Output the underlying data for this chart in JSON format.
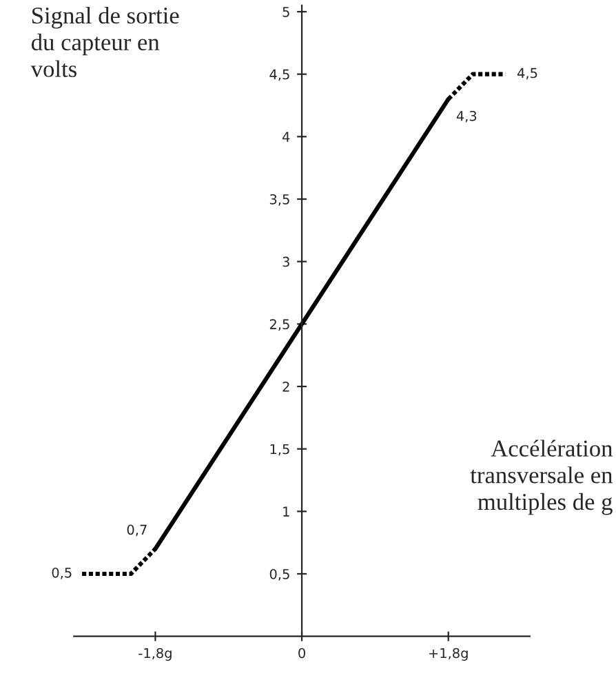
{
  "chart_data": {
    "type": "line",
    "ylabel": "Signal de sortie\ndu capteur en\nvolts",
    "xlabel": "Accélération\ntransversale en\nmultiples de g",
    "series": [
      {
        "color": "#000000",
        "line_style": "dotted",
        "x": [
          -2.7,
          -2.1,
          -1.8
        ],
        "values": [
          0.5,
          0.5,
          0.7
        ],
        "value_labels": [
          "0,5",
          null,
          "0,7"
        ]
      },
      {
        "color": "#000000",
        "line_style": "solid",
        "x": [
          -1.8,
          1.8
        ],
        "values": [
          0.7,
          4.3
        ]
      },
      {
        "color": "#000000",
        "line_style": "dotted",
        "x": [
          1.8,
          2.1,
          2.5
        ],
        "values": [
          4.3,
          4.5,
          4.5
        ],
        "value_labels": [
          "4,3",
          null,
          "4,5"
        ]
      }
    ],
    "xlim": [
      -2.8,
      2.8
    ],
    "ylim": [
      0,
      5.05
    ],
    "xticks": [
      {
        "value": -1.8,
        "label": "-1,8g"
      },
      0,
      {
        "value": 1.8,
        "label": "+1,8g"
      }
    ],
    "yticks": [
      {
        "value": 0.5,
        "label": "0,5"
      },
      1,
      {
        "value": 1.5,
        "label": "1,5"
      },
      2,
      {
        "value": 2.5,
        "label": "2,5"
      },
      3,
      {
        "value": 3.5,
        "label": "3,5"
      },
      4,
      {
        "value": 4.5,
        "label": "4,5"
      },
      5
    ],
    "marker": "none",
    "grid": false,
    "legend": false
  }
}
